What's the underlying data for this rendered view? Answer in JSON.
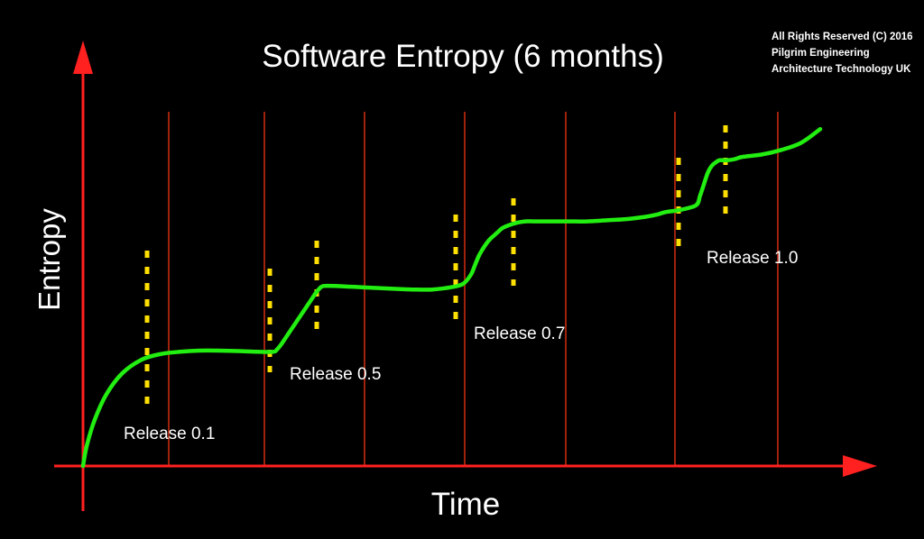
{
  "chart_data": {
    "type": "line",
    "title": "Software Entropy (6 months)",
    "xlabel": "Time",
    "ylabel": "Entropy",
    "copyright": [
      "All Rights Reserved (C) 2016",
      "Pilgrim Engineering",
      "Architecture Technology UK"
    ],
    "colors": {
      "axis": "#ff2020",
      "gridline": "#c62a10",
      "curve": "#22ee11",
      "release_marker": "#ffe000",
      "text": "#ffffff",
      "background": "#000000"
    },
    "series": [
      {
        "x": [
          0,
          1,
          3,
          6,
          10,
          15,
          20,
          25,
          30,
          35,
          40,
          45,
          49,
          50,
          51,
          52,
          53,
          54,
          55,
          56,
          57,
          58,
          59,
          60,
          61,
          62,
          65,
          70,
          75,
          80,
          85,
          90,
          95,
          98,
          100,
          101,
          102,
          103,
          104,
          105,
          106,
          107,
          108,
          110,
          112,
          114,
          116,
          118,
          120,
          125,
          130,
          135,
          140,
          145,
          148,
          150,
          154,
          158,
          159,
          160,
          161,
          162,
          163,
          164,
          165,
          166,
          168,
          170,
          175,
          180,
          185,
          190
        ],
        "y": [
          0,
          9,
          20,
          31,
          40,
          46,
          48.5,
          49.5,
          50,
          50,
          49.8,
          49.5,
          49.5,
          50.5,
          52.5,
          55,
          57.5,
          60,
          62.5,
          65,
          67.5,
          70,
          72.5,
          75,
          77,
          78,
          78,
          77.6,
          77.2,
          76.8,
          76.5,
          76.5,
          77.5,
          79,
          83,
          87,
          91,
          94,
          96.5,
          98.5,
          100,
          101.5,
          103,
          104.5,
          105.5,
          106,
          106,
          106,
          106,
          106,
          106,
          106.5,
          107,
          108,
          109,
          110,
          111,
          113,
          117,
          122,
          127,
          130,
          131.5,
          132.5,
          132.5,
          132.5,
          133,
          134,
          135,
          137,
          140,
          146
        ]
      }
    ],
    "releases": [
      {
        "label": "Release 0.1",
        "x": 15
      },
      {
        "label": "Release 0.5",
        "x": 49
      },
      {
        "label": "Release 0.7",
        "x": 99
      },
      {
        "label": "Release 1.0",
        "x": 158
      }
    ],
    "xlim": [
      0,
      200
    ],
    "ylim": [
      0,
      150
    ],
    "grid": true
  }
}
